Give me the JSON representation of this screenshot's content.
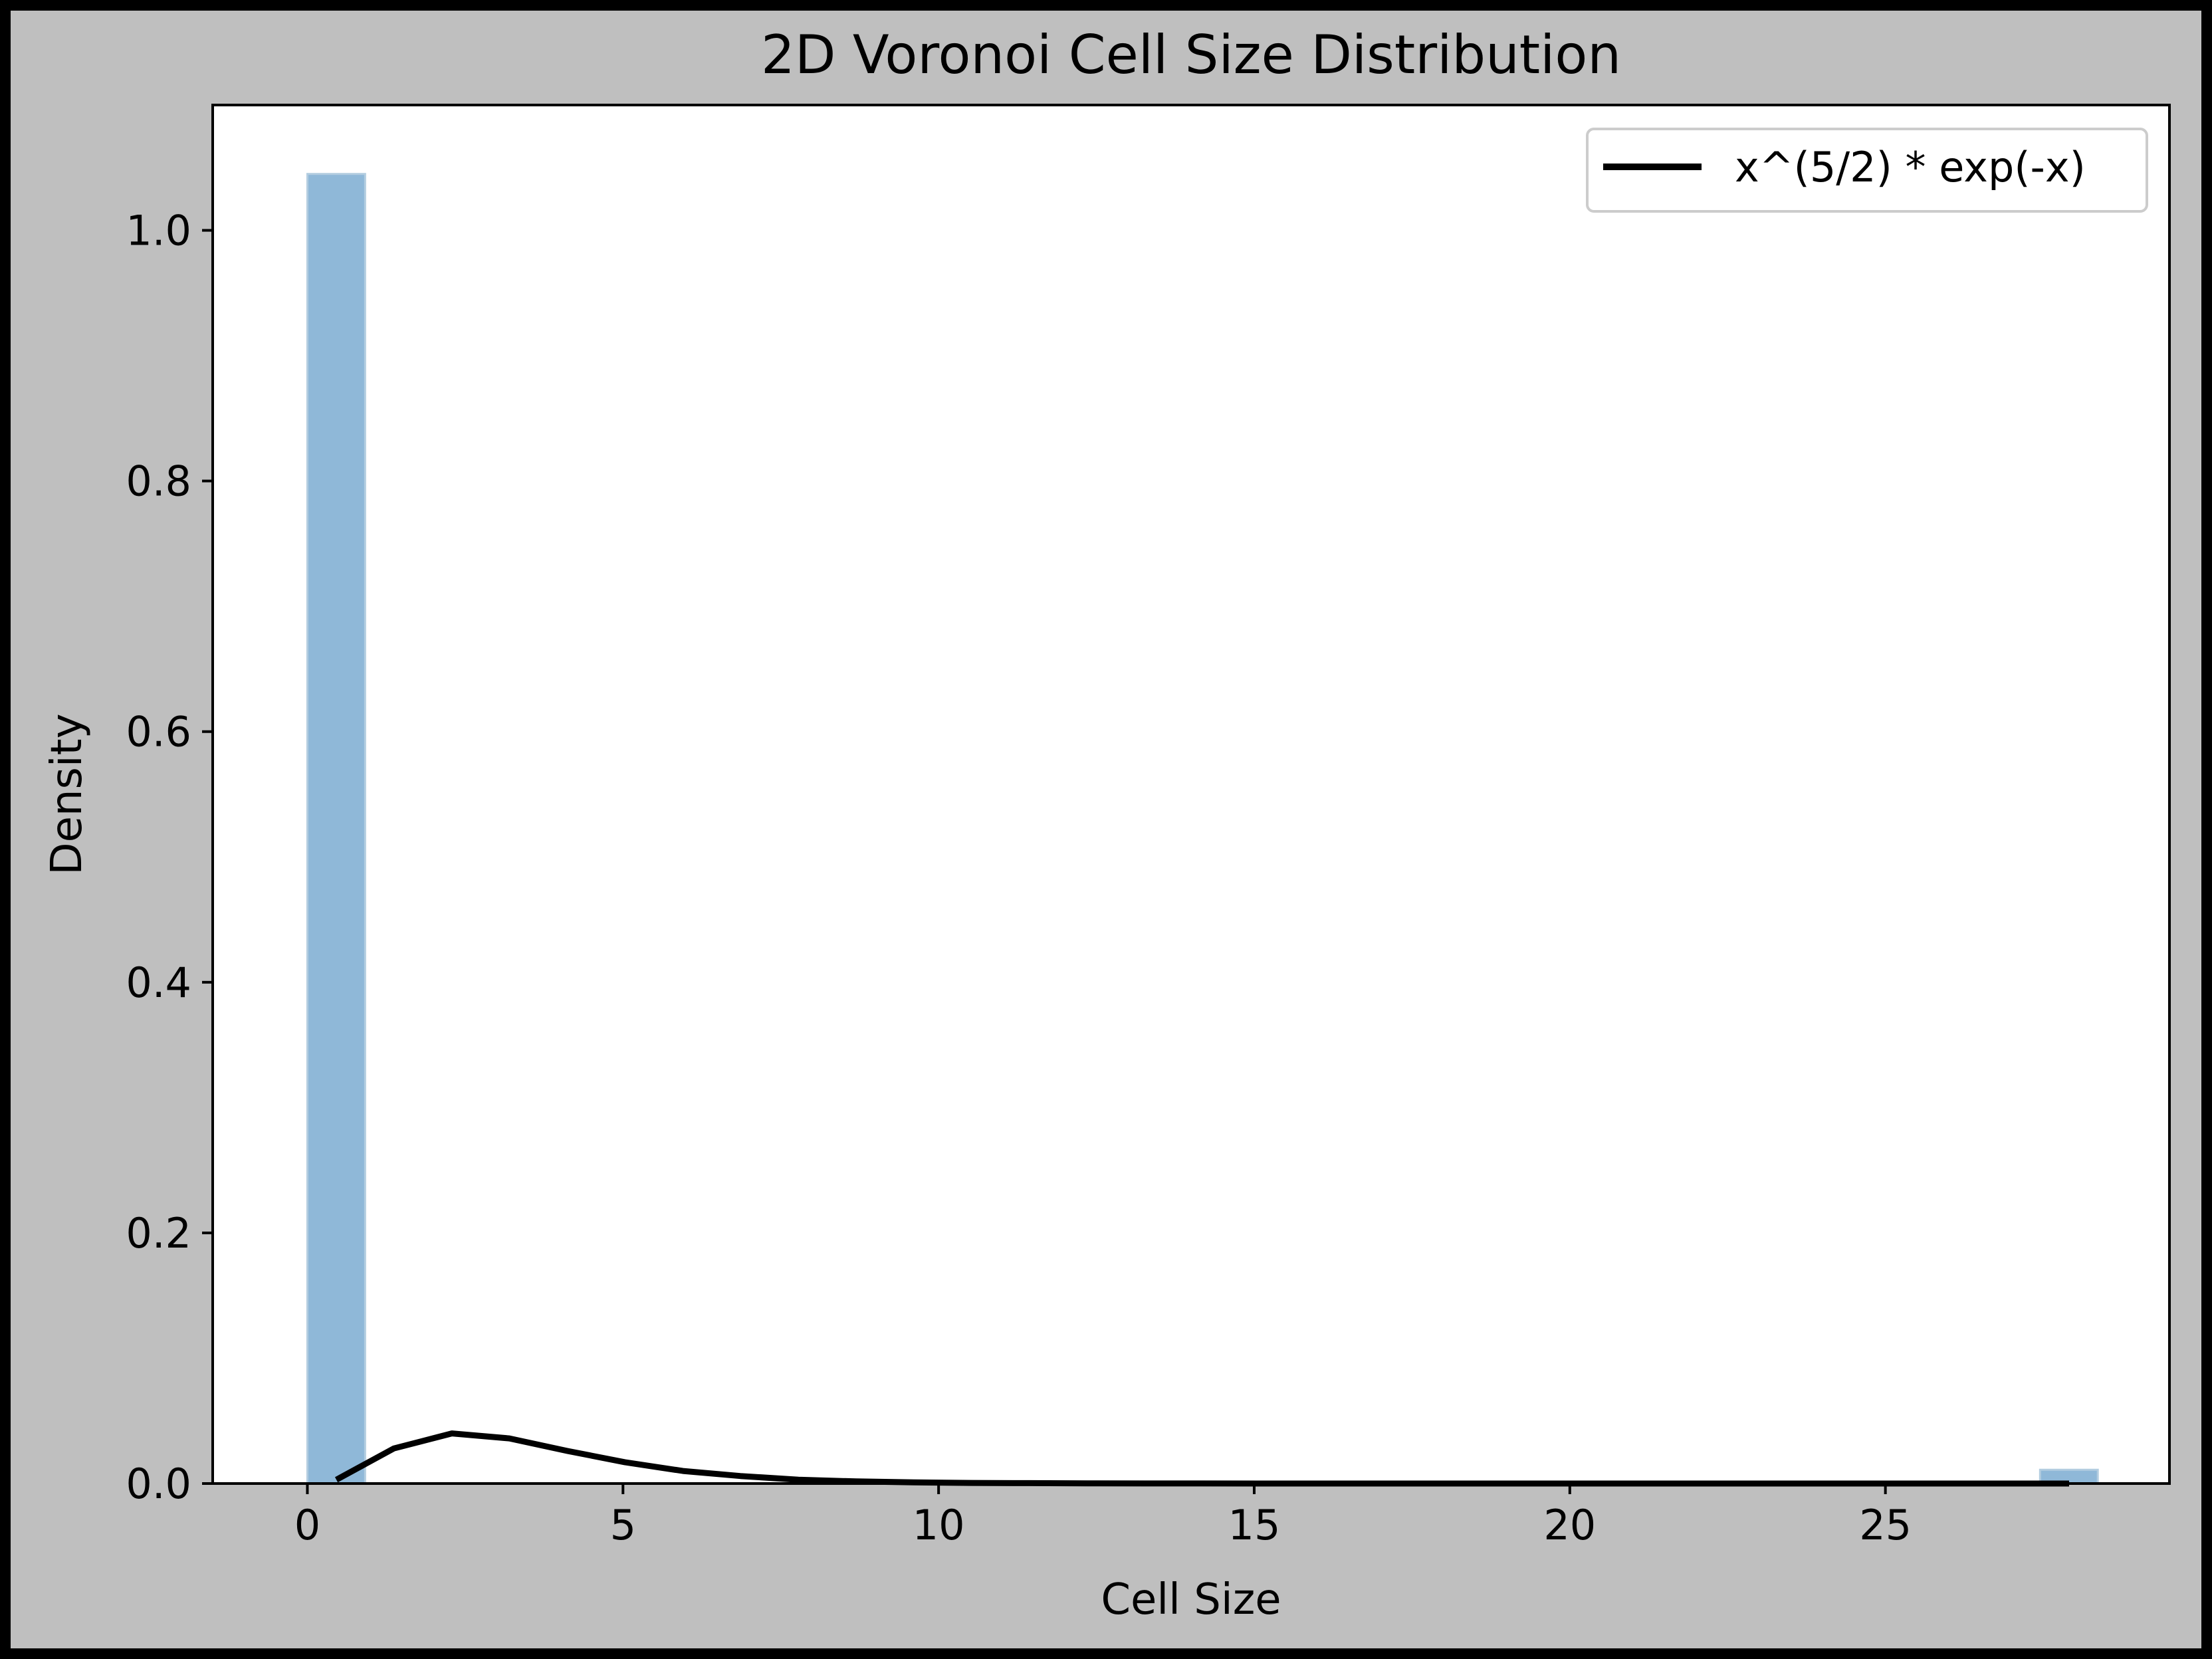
{
  "colors": {
    "figure_background": "#bfbfbf",
    "plot_background": "#ffffff",
    "border": "#000000",
    "bar_fill": "#8fb8d8",
    "bar_edge": "#b3cde0",
    "curve": "#000000",
    "text": "#000000"
  },
  "chart_data": {
    "type": "bar",
    "title": "2D Voronoi Cell Size Distribution",
    "xlabel": "Cell Size",
    "ylabel": "Density",
    "xlim": [
      -1.5,
      29.5
    ],
    "ylim": [
      0,
      1.1
    ],
    "xticks": [
      0,
      5,
      10,
      15,
      20,
      25
    ],
    "yticks": [
      0.0,
      0.2,
      0.4,
      0.6,
      0.8,
      1.0
    ],
    "xtick_labels": [
      "0",
      "5",
      "10",
      "15",
      "20",
      "25"
    ],
    "ytick_labels": [
      "0.0",
      "0.2",
      "0.4",
      "0.6",
      "0.8",
      "1.0"
    ],
    "grid": false,
    "legend_position": "top-right",
    "histogram": {
      "bin_width": 0.915,
      "bins": [
        {
          "x0": 0.0,
          "x1": 0.915,
          "density": 1.045
        },
        {
          "x0": 27.45,
          "x1": 28.365,
          "density": 0.011
        }
      ]
    },
    "series": [
      {
        "name": "x^(5/2) * exp(-x)",
        "type": "line",
        "x": [
          0.46,
          1.37,
          2.29,
          3.2,
          4.12,
          5.03,
          5.95,
          6.86,
          7.78,
          8.69,
          9.61,
          10.52,
          11.44,
          12.35,
          13.27,
          14.18,
          15.1,
          16.01,
          16.93,
          17.84,
          18.76,
          19.67,
          20.59,
          21.5,
          22.42,
          23.33,
          24.25,
          25.16,
          26.08,
          26.99,
          27.91
        ],
        "y": [
          0.003,
          0.028,
          0.04,
          0.036,
          0.026,
          0.017,
          0.01,
          0.006,
          0.003,
          0.0017,
          0.0009,
          0.0005,
          0.0003,
          0.00014,
          7e-05,
          4e-05,
          2e-05,
          1e-05,
          0.0,
          0.0,
          0.0,
          0.0,
          0.0,
          0.0,
          0.0,
          0.0,
          0.0,
          0.0,
          0.0,
          0.0,
          0.0
        ]
      }
    ]
  }
}
